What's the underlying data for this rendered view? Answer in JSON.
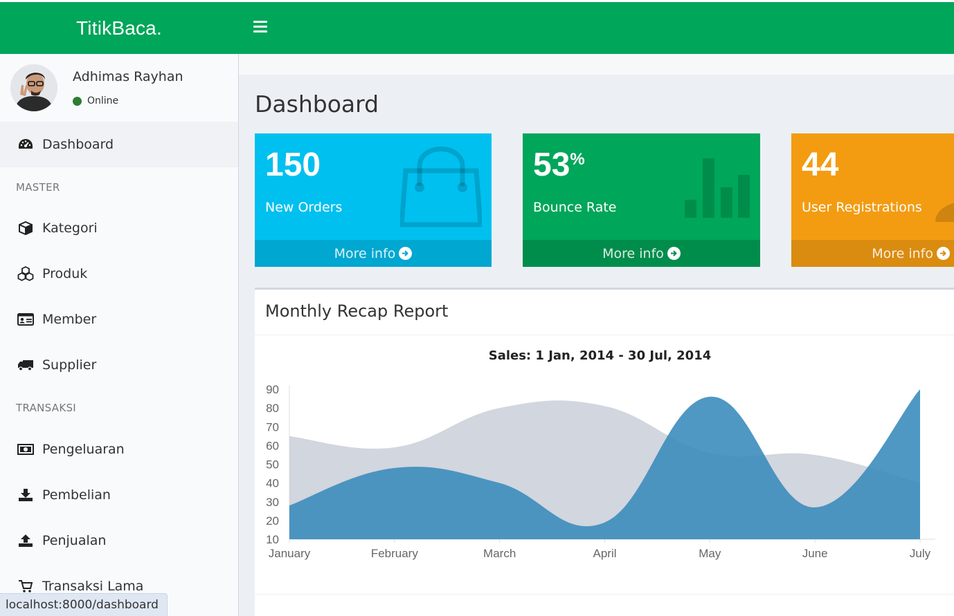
{
  "app": {
    "logo": "TitikBaca."
  },
  "user": {
    "name": "Adhimas Rayhan",
    "status": "Online"
  },
  "menu": {
    "dashboard": "Dashboard",
    "header_master": "MASTER",
    "kategori": "Kategori",
    "produk": "Produk",
    "member": "Member",
    "supplier": "Supplier",
    "header_transaksi": "TRANSAKSI",
    "pengeluaran": "Pengeluaran",
    "pembelian": "Pembelian",
    "penjualan": "Penjualan",
    "transaksi_lama": "Transaksi Lama"
  },
  "status_url": "localhost:8000/dashboard",
  "page": {
    "title": "Dashboard"
  },
  "boxes": [
    {
      "value": "150",
      "suffix": "",
      "label": "New Orders",
      "more": "More info",
      "color": "#00c0ef",
      "footer_color": "#00a7d0",
      "icon": "shopping-bag-icon"
    },
    {
      "value": "53",
      "suffix": "%",
      "label": "Bounce Rate",
      "more": "More info",
      "color": "#00a65a",
      "footer_color": "#008d4c",
      "icon": "bar-chart-icon"
    },
    {
      "value": "44",
      "suffix": "",
      "label": "User Registrations",
      "more": "More info",
      "color": "#f39c12",
      "footer_color": "#da8c10",
      "icon": "user-add-icon"
    }
  ],
  "report": {
    "title": "Monthly Recap Report"
  },
  "chart_data": {
    "type": "area",
    "title": "Sales: 1 Jan, 2014 - 30 Jul, 2014",
    "categories": [
      "January",
      "February",
      "March",
      "April",
      "May",
      "June",
      "July"
    ],
    "yticks": [
      10,
      20,
      30,
      40,
      50,
      60,
      70,
      80,
      90
    ],
    "ylim": [
      10,
      90
    ],
    "series": [
      {
        "values": [
          65,
          59,
          80,
          81,
          56,
          55,
          40
        ],
        "color": "#d2d6de"
      },
      {
        "values": [
          28,
          48,
          40,
          19,
          86,
          27,
          90
        ],
        "color": "#3c8dbc"
      }
    ]
  }
}
